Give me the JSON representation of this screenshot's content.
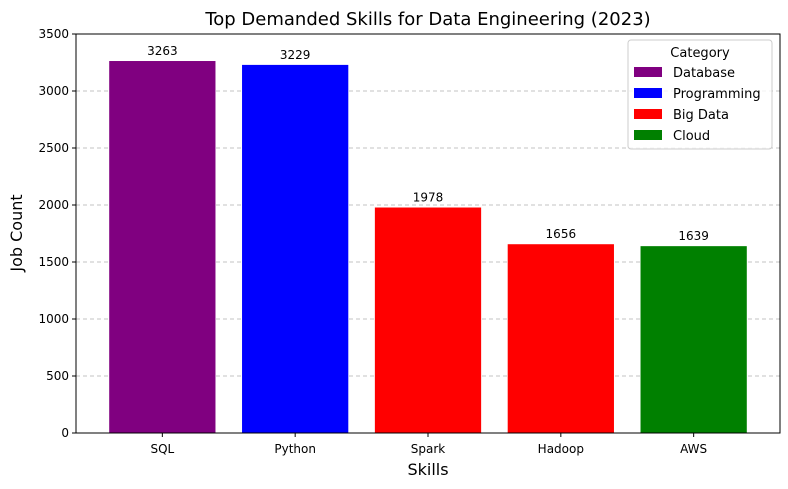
{
  "chart_data": {
    "type": "bar",
    "title": "Top Demanded Skills for Data Engineering (2023)",
    "xlabel": "Skills",
    "ylabel": "Job Count",
    "categories": [
      "SQL",
      "Python",
      "Spark",
      "Hadoop",
      "AWS"
    ],
    "values": [
      3263,
      3229,
      1978,
      1656,
      1639
    ],
    "bar_categories": [
      "Database",
      "Programming",
      "Big Data",
      "Big Data",
      "Cloud"
    ],
    "ylim": [
      0,
      3500
    ],
    "yticks": [
      0,
      500,
      1000,
      1500,
      2000,
      2500,
      3000,
      3500
    ],
    "grid": "y-dashed",
    "legend": {
      "title": "Category",
      "placement": "top-right",
      "entries": [
        {
          "label": "Database",
          "color": "#800080"
        },
        {
          "label": "Programming",
          "color": "#0000ff"
        },
        {
          "label": "Big Data",
          "color": "#ff0000"
        },
        {
          "label": "Cloud",
          "color": "#008000"
        }
      ]
    },
    "colors": {
      "Database": "#800080",
      "Programming": "#0000ff",
      "Big Data": "#ff0000",
      "Cloud": "#008000"
    }
  }
}
